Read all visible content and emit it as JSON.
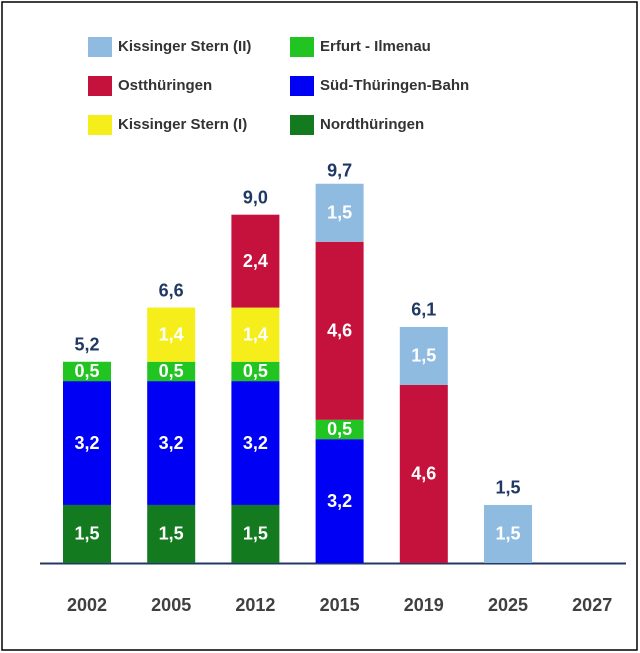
{
  "chart_data": {
    "type": "bar",
    "stacked": true,
    "categories": [
      "2002",
      "2005",
      "2012",
      "2015",
      "2019",
      "2025",
      "2027"
    ],
    "series": [
      {
        "name": "Nordthüringen",
        "color": "#137a1f",
        "values": [
          1.5,
          1.5,
          1.5,
          null,
          null,
          null,
          null
        ],
        "value_labels": [
          "1,5",
          "1,5",
          "1,5",
          null,
          null,
          null,
          null
        ]
      },
      {
        "name": "Süd-Thüringen-Bahn",
        "color": "#0000f5",
        "values": [
          3.2,
          3.2,
          3.2,
          3.2,
          null,
          null,
          null
        ],
        "value_labels": [
          "3,2",
          "3,2",
          "3,2",
          "3,2",
          null,
          null,
          null
        ]
      },
      {
        "name": "Erfurt - Ilmenau",
        "color": "#22c422",
        "values": [
          0.5,
          0.5,
          0.5,
          0.5,
          null,
          null,
          null
        ],
        "value_labels": [
          "0,5",
          "0,5",
          "0,5",
          "0,5",
          null,
          null,
          null
        ]
      },
      {
        "name": "Kissinger Stern (I)",
        "color": "#f5ee1b",
        "values": [
          null,
          1.4,
          1.4,
          null,
          null,
          null,
          null
        ],
        "value_labels": [
          null,
          "1,4",
          "1,4",
          null,
          null,
          null,
          null
        ]
      },
      {
        "name": "Ostthüringen",
        "color": "#c4123c",
        "values": [
          null,
          null,
          2.4,
          4.6,
          4.6,
          null,
          null
        ],
        "value_labels": [
          null,
          null,
          "2,4",
          "4,6",
          "4,6",
          null,
          null
        ]
      },
      {
        "name": "Kissinger Stern (II)",
        "color": "#8fbbe0",
        "values": [
          null,
          null,
          null,
          1.5,
          1.5,
          1.5,
          null
        ],
        "value_labels": [
          null,
          null,
          null,
          "1,5",
          "1,5",
          "1,5",
          null
        ]
      }
    ],
    "totals": [
      5.2,
      6.6,
      9.0,
      9.7,
      6.1,
      1.5,
      null
    ],
    "total_labels": [
      "5,2",
      "6,6",
      "9,0",
      "9,7",
      "6,1",
      "1,5",
      null
    ]
  }
}
